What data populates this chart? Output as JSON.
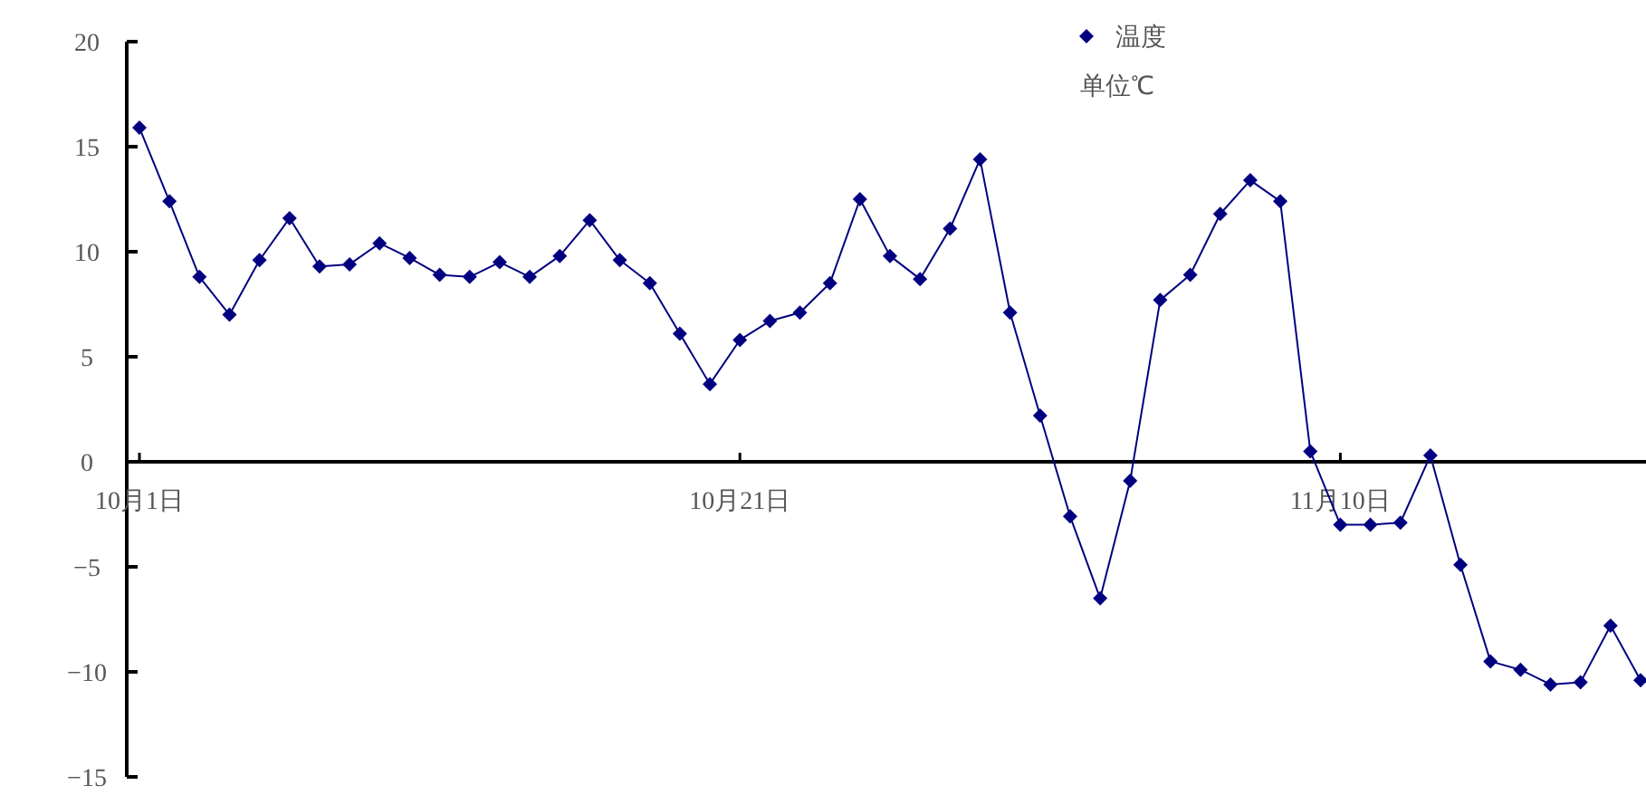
{
  "chart_data": {
    "type": "line",
    "categories": [
      "10月1日",
      null,
      null,
      null,
      null,
      null,
      null,
      null,
      null,
      null,
      null,
      null,
      null,
      null,
      null,
      null,
      null,
      null,
      null,
      null,
      "10月21日",
      null,
      null,
      null,
      null,
      null,
      null,
      null,
      null,
      null,
      null,
      null,
      null,
      null,
      null,
      null,
      null,
      null,
      null,
      null,
      "11月10日",
      null,
      null,
      null,
      null,
      null,
      null,
      null,
      null,
      null,
      null
    ],
    "series": [
      {
        "name": "温度",
        "color": "#000080",
        "values": [
          15.9,
          12.4,
          8.8,
          7.0,
          9.6,
          11.6,
          9.3,
          9.4,
          10.4,
          9.7,
          8.9,
          8.8,
          9.5,
          8.8,
          9.8,
          11.5,
          9.6,
          8.5,
          6.1,
          3.7,
          5.8,
          6.7,
          7.1,
          8.5,
          12.5,
          9.8,
          8.7,
          11.1,
          14.4,
          7.1,
          2.2,
          -2.6,
          -6.5,
          -0.9,
          7.7,
          8.9,
          11.8,
          13.4,
          12.4,
          0.5,
          -3.0,
          -3.0,
          -2.9,
          0.3,
          -4.9,
          -9.5,
          -9.9,
          -10.6,
          -10.5,
          -7.8,
          -10.4
        ]
      }
    ],
    "ylim": [
      -15,
      20
    ],
    "yticks": [
      -15,
      -10,
      -5,
      0,
      5,
      10,
      15,
      20
    ],
    "annotations": [
      "单位℃"
    ],
    "legend": "top",
    "grid": false,
    "marker": "diamond",
    "line_style": "solid"
  }
}
